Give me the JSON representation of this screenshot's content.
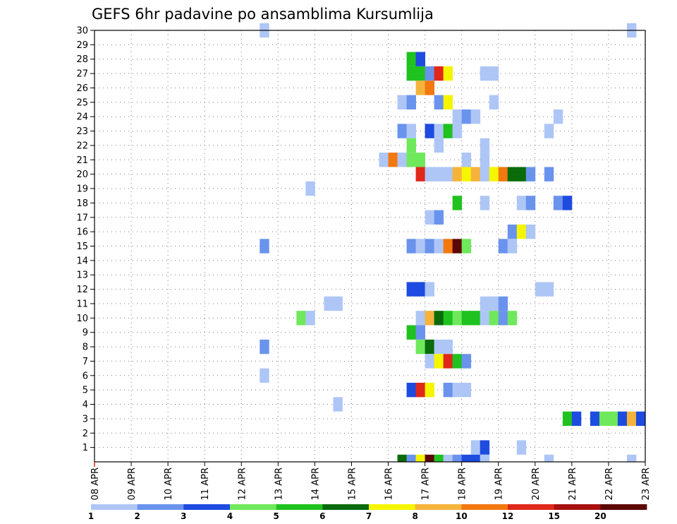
{
  "chart_data": {
    "type": "heatmap",
    "title": "GEFS 6hr padavine po ansamblima Kursumlija",
    "xlabel": "",
    "ylabel": "",
    "x_tick_labels": [
      "08 APR",
      "09 APR",
      "10 APR",
      "11 APR",
      "12 APR",
      "13 APR",
      "14 APR",
      "15 APR",
      "16 APR",
      "17 APR",
      "18 APR",
      "19 APR",
      "20 APR",
      "21 APR",
      "22 APR",
      "23 APR"
    ],
    "x_range_days": [
      8,
      23
    ],
    "y_tick_labels": [
      "1",
      "2",
      "3",
      "4",
      "5",
      "6",
      "7",
      "8",
      "9",
      "10",
      "11",
      "12",
      "13",
      "14",
      "15",
      "16",
      "17",
      "18",
      "19",
      "20",
      "21",
      "22",
      "23",
      "24",
      "25",
      "26",
      "27",
      "28",
      "29",
      "30"
    ],
    "y_range": [
      0,
      30
    ],
    "grid": true,
    "colorbar": {
      "labels": [
        "1",
        "2",
        "3",
        "4",
        "5",
        "6",
        "7",
        "8",
        "10",
        "12",
        "15",
        "20"
      ],
      "colors": [
        "#aec6f6",
        "#6a93ed",
        "#1e4be0",
        "#6fe85c",
        "#1fc21f",
        "#0a6b0a",
        "#f5f500",
        "#f5b33c",
        "#f2780f",
        "#e0281a",
        "#a8100e",
        "#5c0606"
      ]
    },
    "cells": [
      {
        "member": 30,
        "day": 12.5,
        "level": 1
      },
      {
        "member": 30,
        "day": 22.5,
        "level": 1
      },
      {
        "member": 28,
        "day": 16.5,
        "level": 5
      },
      {
        "member": 28,
        "day": 16.75,
        "level": 3
      },
      {
        "member": 27,
        "day": 16.5,
        "level": 5
      },
      {
        "member": 27,
        "day": 16.75,
        "level": 5
      },
      {
        "member": 27,
        "day": 17,
        "level": 2
      },
      {
        "member": 27,
        "day": 17.25,
        "level": 10
      },
      {
        "member": 27,
        "day": 17.5,
        "level": 7
      },
      {
        "member": 27,
        "day": 18.5,
        "level": 1
      },
      {
        "member": 27,
        "day": 18.75,
        "level": 1
      },
      {
        "member": 26,
        "day": 16.75,
        "level": 8
      },
      {
        "member": 26,
        "day": 17,
        "level": 9
      },
      {
        "member": 25,
        "day": 16.25,
        "level": 1
      },
      {
        "member": 25,
        "day": 16.5,
        "level": 2
      },
      {
        "member": 25,
        "day": 17.25,
        "level": 2
      },
      {
        "member": 25,
        "day": 17.5,
        "level": 7
      },
      {
        "member": 25,
        "day": 18.75,
        "level": 1
      },
      {
        "member": 24,
        "day": 17.75,
        "level": 1
      },
      {
        "member": 24,
        "day": 18,
        "level": 2
      },
      {
        "member": 24,
        "day": 18.25,
        "level": 1
      },
      {
        "member": 24,
        "day": 20.5,
        "level": 1
      },
      {
        "member": 23,
        "day": 16.25,
        "level": 2
      },
      {
        "member": 23,
        "day": 16.5,
        "level": 1
      },
      {
        "member": 23,
        "day": 17,
        "level": 3
      },
      {
        "member": 23,
        "day": 17.25,
        "level": 1
      },
      {
        "member": 23,
        "day": 17.5,
        "level": 5
      },
      {
        "member": 23,
        "day": 17.75,
        "level": 1
      },
      {
        "member": 23,
        "day": 20.25,
        "level": 1
      },
      {
        "member": 22,
        "day": 16.5,
        "level": 4
      },
      {
        "member": 22,
        "day": 17.25,
        "level": 1
      },
      {
        "member": 22,
        "day": 18.5,
        "level": 1
      },
      {
        "member": 21,
        "day": 15.75,
        "level": 1
      },
      {
        "member": 21,
        "day": 16,
        "level": 9
      },
      {
        "member": 21,
        "day": 16.25,
        "level": 1
      },
      {
        "member": 21,
        "day": 16.5,
        "level": 4
      },
      {
        "member": 21,
        "day": 16.75,
        "level": 4
      },
      {
        "member": 21,
        "day": 18,
        "level": 1
      },
      {
        "member": 21,
        "day": 18.5,
        "level": 1
      },
      {
        "member": 20,
        "day": 16.75,
        "level": 10
      },
      {
        "member": 20,
        "day": 17,
        "level": 1
      },
      {
        "member": 20,
        "day": 17.25,
        "level": 1
      },
      {
        "member": 20,
        "day": 17.5,
        "level": 1
      },
      {
        "member": 20,
        "day": 17.75,
        "level": 8
      },
      {
        "member": 20,
        "day": 18,
        "level": 7
      },
      {
        "member": 20,
        "day": 18.25,
        "level": 8
      },
      {
        "member": 20,
        "day": 18.5,
        "level": 1
      },
      {
        "member": 20,
        "day": 18.75,
        "level": 7
      },
      {
        "member": 20,
        "day": 19,
        "level": 9
      },
      {
        "member": 20,
        "day": 19.25,
        "level": 6
      },
      {
        "member": 20,
        "day": 19.5,
        "level": 6
      },
      {
        "member": 20,
        "day": 19.75,
        "level": 2
      },
      {
        "member": 20,
        "day": 20.25,
        "level": 2
      },
      {
        "member": 19,
        "day": 13.75,
        "level": 1
      },
      {
        "member": 18,
        "day": 17.75,
        "level": 5
      },
      {
        "member": 18,
        "day": 18.5,
        "level": 1
      },
      {
        "member": 18,
        "day": 19.5,
        "level": 1
      },
      {
        "member": 18,
        "day": 19.75,
        "level": 2
      },
      {
        "member": 18,
        "day": 20.5,
        "level": 2
      },
      {
        "member": 18,
        "day": 20.75,
        "level": 3
      },
      {
        "member": 17,
        "day": 17,
        "level": 1
      },
      {
        "member": 17,
        "day": 17.25,
        "level": 2
      },
      {
        "member": 16,
        "day": 19.25,
        "level": 2
      },
      {
        "member": 16,
        "day": 19.5,
        "level": 7
      },
      {
        "member": 16,
        "day": 19.75,
        "level": 1
      },
      {
        "member": 15,
        "day": 12.5,
        "level": 2
      },
      {
        "member": 15,
        "day": 16.5,
        "level": 2
      },
      {
        "member": 15,
        "day": 16.75,
        "level": 1
      },
      {
        "member": 15,
        "day": 17,
        "level": 2
      },
      {
        "member": 15,
        "day": 17.25,
        "level": 1
      },
      {
        "member": 15,
        "day": 17.5,
        "level": 9
      },
      {
        "member": 15,
        "day": 17.75,
        "level": 12
      },
      {
        "member": 15,
        "day": 18,
        "level": 4
      },
      {
        "member": 15,
        "day": 19,
        "level": 2
      },
      {
        "member": 15,
        "day": 19.25,
        "level": 1
      },
      {
        "member": 12,
        "day": 16.5,
        "level": 3
      },
      {
        "member": 12,
        "day": 16.75,
        "level": 3
      },
      {
        "member": 12,
        "day": 17,
        "level": 1
      },
      {
        "member": 12,
        "day": 20,
        "level": 1
      },
      {
        "member": 12,
        "day": 20.25,
        "level": 1
      },
      {
        "member": 11,
        "day": 14.25,
        "level": 1
      },
      {
        "member": 11,
        "day": 14.5,
        "level": 1
      },
      {
        "member": 11,
        "day": 18.5,
        "level": 1
      },
      {
        "member": 11,
        "day": 18.75,
        "level": 1
      },
      {
        "member": 11,
        "day": 19,
        "level": 2
      },
      {
        "member": 10,
        "day": 13.5,
        "level": 4
      },
      {
        "member": 10,
        "day": 13.75,
        "level": 1
      },
      {
        "member": 10,
        "day": 16.75,
        "level": 1
      },
      {
        "member": 10,
        "day": 17,
        "level": 8
      },
      {
        "member": 10,
        "day": 17.25,
        "level": 6
      },
      {
        "member": 10,
        "day": 17.5,
        "level": 5
      },
      {
        "member": 10,
        "day": 17.75,
        "level": 4
      },
      {
        "member": 10,
        "day": 18,
        "level": 5
      },
      {
        "member": 10,
        "day": 18.25,
        "level": 5
      },
      {
        "member": 10,
        "day": 18.5,
        "level": 1
      },
      {
        "member": 10,
        "day": 18.75,
        "level": 4
      },
      {
        "member": 10,
        "day": 19,
        "level": 2
      },
      {
        "member": 10,
        "day": 19.25,
        "level": 4
      },
      {
        "member": 9,
        "day": 16.5,
        "level": 5
      },
      {
        "member": 9,
        "day": 16.75,
        "level": 2
      },
      {
        "member": 8,
        "day": 12.5,
        "level": 2
      },
      {
        "member": 8,
        "day": 16.75,
        "level": 4
      },
      {
        "member": 8,
        "day": 17,
        "level": 6
      },
      {
        "member": 8,
        "day": 17.25,
        "level": 1
      },
      {
        "member": 8,
        "day": 17.5,
        "level": 1
      },
      {
        "member": 7,
        "day": 17,
        "level": 1
      },
      {
        "member": 7,
        "day": 17.25,
        "level": 7
      },
      {
        "member": 7,
        "day": 17.5,
        "level": 10
      },
      {
        "member": 7,
        "day": 17.75,
        "level": 5
      },
      {
        "member": 7,
        "day": 18,
        "level": 2
      },
      {
        "member": 6,
        "day": 12.5,
        "level": 1
      },
      {
        "member": 5,
        "day": 16.5,
        "level": 3
      },
      {
        "member": 5,
        "day": 16.75,
        "level": 10
      },
      {
        "member": 5,
        "day": 17,
        "level": 7
      },
      {
        "member": 5,
        "day": 17.5,
        "level": 2
      },
      {
        "member": 5,
        "day": 17.75,
        "level": 1
      },
      {
        "member": 5,
        "day": 18,
        "level": 1
      },
      {
        "member": 4,
        "day": 14.5,
        "level": 1
      },
      {
        "member": 3,
        "day": 20.75,
        "level": 5
      },
      {
        "member": 3,
        "day": 21,
        "level": 3
      },
      {
        "member": 3,
        "day": 21.5,
        "level": 3
      },
      {
        "member": 3,
        "day": 21.75,
        "level": 4
      },
      {
        "member": 3,
        "day": 22,
        "level": 4
      },
      {
        "member": 3,
        "day": 22.25,
        "level": 3
      },
      {
        "member": 3,
        "day": 22.5,
        "level": 8
      },
      {
        "member": 3,
        "day": 22.75,
        "level": 3
      },
      {
        "member": 1,
        "day": 18.25,
        "level": 1
      },
      {
        "member": 1,
        "day": 18.5,
        "level": 3
      },
      {
        "member": 1,
        "day": 19.5,
        "level": 1
      },
      {
        "member": 0,
        "day": 16.25,
        "level": 6
      },
      {
        "member": 0,
        "day": 16.5,
        "level": 2
      },
      {
        "member": 0,
        "day": 16.75,
        "level": 7
      },
      {
        "member": 0,
        "day": 17,
        "level": 12
      },
      {
        "member": 0,
        "day": 17.25,
        "level": 5
      },
      {
        "member": 0,
        "day": 17.5,
        "level": 1
      },
      {
        "member": 0,
        "day": 17.75,
        "level": 2
      },
      {
        "member": 0,
        "day": 18,
        "level": 3
      },
      {
        "member": 0,
        "day": 18.25,
        "level": 3
      },
      {
        "member": 0,
        "day": 18.5,
        "level": 1
      },
      {
        "member": 0,
        "day": 20.25,
        "level": 1
      },
      {
        "member": 0,
        "day": 22.5,
        "level": 1
      }
    ]
  }
}
